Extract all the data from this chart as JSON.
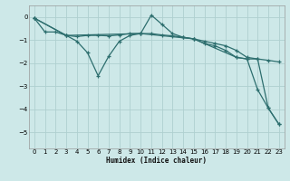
{
  "xlabel": "Humidex (Indice chaleur)",
  "bg_color": "#cde8e8",
  "grid_color": "#afd0d0",
  "line_color": "#2d6e6e",
  "xlim": [
    -0.5,
    23.5
  ],
  "ylim": [
    -5.7,
    0.5
  ],
  "yticks": [
    0,
    -1,
    -2,
    -3,
    -4,
    -5
  ],
  "xticks": [
    0,
    1,
    2,
    3,
    4,
    5,
    6,
    7,
    8,
    9,
    10,
    11,
    12,
    13,
    14,
    15,
    16,
    17,
    18,
    19,
    20,
    21,
    22,
    23
  ],
  "line1_x": [
    0,
    1,
    2,
    3,
    4,
    5,
    6,
    7,
    8,
    9,
    10,
    11,
    12,
    13,
    14,
    15,
    16,
    17,
    18,
    19,
    20,
    21,
    22,
    23
  ],
  "line1_y": [
    -0.05,
    -0.65,
    -0.65,
    -0.8,
    -0.85,
    -0.8,
    -0.8,
    -0.82,
    -0.78,
    -0.72,
    -0.72,
    -0.72,
    -0.78,
    -0.82,
    -0.88,
    -0.95,
    -1.05,
    -1.15,
    -1.25,
    -1.45,
    -1.75,
    -1.82,
    -1.88,
    -1.95
  ],
  "line2_x": [
    0,
    3,
    4,
    5,
    6,
    7,
    8,
    9,
    10,
    11,
    12,
    13,
    14,
    15,
    16,
    17,
    18,
    19,
    20,
    21,
    22,
    23
  ],
  "line2_y": [
    -0.05,
    -0.8,
    -1.05,
    -1.55,
    -2.55,
    -1.7,
    -1.05,
    -0.8,
    -0.72,
    0.08,
    -0.32,
    -0.72,
    -0.88,
    -0.95,
    -1.15,
    -1.25,
    -1.45,
    -1.75,
    -1.82,
    -3.15,
    -3.95,
    -4.65
  ],
  "line3_x": [
    0,
    3,
    10,
    15,
    19,
    20,
    21,
    22,
    23
  ],
  "line3_y": [
    -0.05,
    -0.8,
    -0.72,
    -0.95,
    -1.75,
    -1.82,
    -1.82,
    -3.95,
    -4.65
  ]
}
